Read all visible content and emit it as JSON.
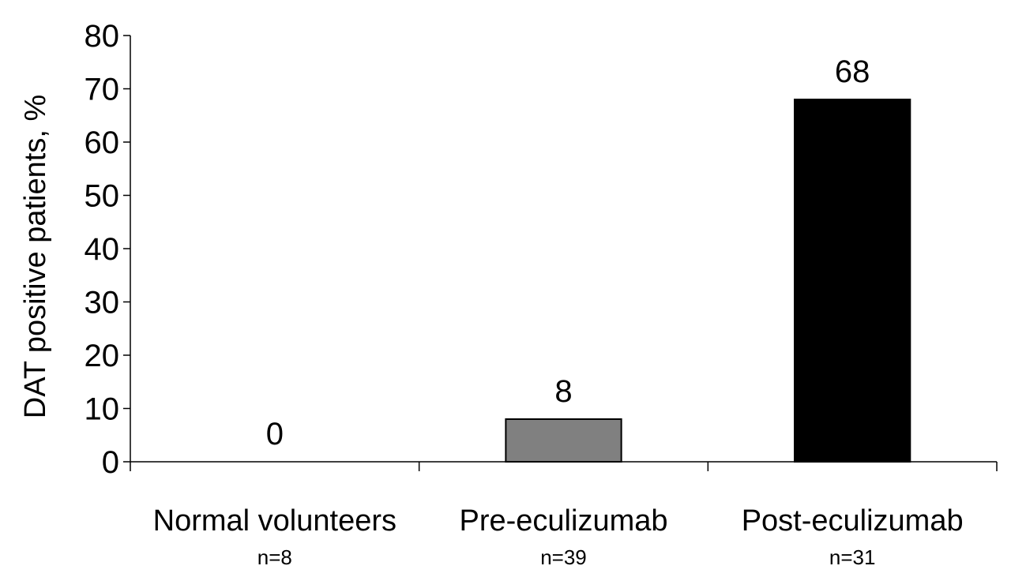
{
  "chart_data": {
    "type": "bar",
    "title": "",
    "xlabel": "",
    "ylabel": "DAT positive patients, %",
    "ylim": [
      0,
      80
    ],
    "yticks": [
      0,
      10,
      20,
      30,
      40,
      50,
      60,
      70,
      80
    ],
    "grid": false,
    "legend": "none",
    "categories": [
      "Normal volunteers",
      "Pre-eculizumab",
      "Post-eculizumab"
    ],
    "sample_sizes": [
      "n=8",
      "n=39",
      "n=31"
    ],
    "values": [
      0,
      8,
      68
    ],
    "data_labels": [
      "0",
      "8",
      "68"
    ],
    "bar_colors": [
      "#ffffff",
      "#808080",
      "#000000"
    ]
  }
}
